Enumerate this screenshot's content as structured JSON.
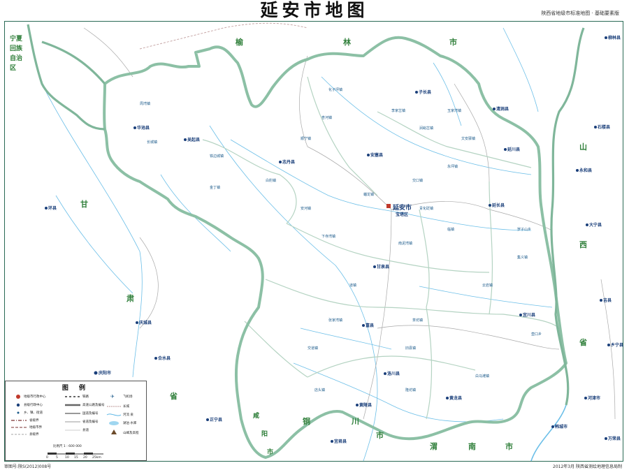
{
  "title": "延安市地图",
  "subtitle": "陕西省地级市标准地图 · 基础要素版",
  "footer": {
    "left": "审图号:陕S(2012)008号",
    "right": "2012年3月   陕西省测绘地理信息局制"
  },
  "regions": {
    "ningxia": "宁夏回族自治区",
    "yulin": [
      "榆",
      "林",
      "市"
    ],
    "gansu": [
      "甘",
      "肃",
      "省"
    ],
    "shanxi": [
      "山",
      "西",
      "省"
    ],
    "xianyang": [
      "咸",
      "阳",
      "市"
    ],
    "tongchuan": [
      "铜",
      "川",
      "市"
    ],
    "weinan": [
      "渭",
      "南",
      "市"
    ]
  },
  "city_seat": {
    "name": "延安市",
    "sub": "宝塔区"
  },
  "counties": [
    {
      "name": "吴起县"
    },
    {
      "name": "志丹县"
    },
    {
      "name": "安塞县"
    },
    {
      "name": "子长县"
    },
    {
      "name": "延川县"
    },
    {
      "name": "延长县"
    },
    {
      "name": "甘泉县"
    },
    {
      "name": "宜川县"
    },
    {
      "name": "富县"
    },
    {
      "name": "洛川县"
    },
    {
      "name": "黄龙县"
    },
    {
      "name": "黄陵县"
    },
    {
      "name": "清涧县"
    },
    {
      "name": "华池县"
    },
    {
      "name": "庆城县"
    },
    {
      "name": "合水县"
    },
    {
      "name": "庆阳市"
    },
    {
      "name": "环县"
    },
    {
      "name": "正宁县"
    },
    {
      "name": "宜君县"
    },
    {
      "name": "韩城市"
    },
    {
      "name": "河津市"
    },
    {
      "name": "乡宁县"
    },
    {
      "name": "吉县"
    },
    {
      "name": "大宁县"
    },
    {
      "name": "永和县"
    },
    {
      "name": "石楼县"
    },
    {
      "name": "柳林县"
    },
    {
      "name": "万荣县"
    }
  ],
  "towns": [
    "周湾镇",
    "长城镇",
    "铁边城镇",
    "白豹镇",
    "金丁镇",
    "顺宁镇",
    "杏河镇",
    "化子坪镇",
    "李家岔镇",
    "玉家湾镇",
    "涧峪岔镇",
    "文安驿镇",
    "永坪镇",
    "交口镇",
    "蟠龙镇",
    "青化砭镇",
    "临镇",
    "南泥湾镇",
    "下寺湾镇",
    "道镇",
    "张家湾镇",
    "茶坊镇",
    "交道镇",
    "旧县镇",
    "店头镇",
    "隆坊镇",
    "白马滩镇",
    "壶口乡",
    "云岩镇",
    "集义镇",
    "罗子山乡",
    "安河镇"
  ],
  "legend": {
    "title": "图  例",
    "items": [
      {
        "label": "地级市行政中心"
      },
      {
        "label": "县级行政中心"
      },
      {
        "label": "乡、镇、街道"
      },
      {
        "label": "省级界"
      },
      {
        "label": "地级市界"
      },
      {
        "label": "县级界"
      },
      {
        "label": "铁路"
      },
      {
        "label": "高速公路及编号"
      },
      {
        "label": "国道及编号"
      },
      {
        "label": "省道及编号"
      },
      {
        "label": "县道"
      },
      {
        "label": "飞机场"
      },
      {
        "label": "长城"
      },
      {
        "label": "河流  泉"
      },
      {
        "label": "湖泊  水库"
      },
      {
        "label": "山峰及高程"
      }
    ],
    "scale": "比例尺  1 : 600 000",
    "scale_ticks": [
      "0",
      "5",
      "10",
      "15",
      "20",
      "25km"
    ]
  },
  "colors": {
    "province_border": "#7fb69a",
    "city_border": "#9fc7b2",
    "county_line": "#a8c9b6",
    "river": "#5bb6e6",
    "road": "#9a9a9a",
    "text_region": "#2f7f3a",
    "text_place": "#1b5a8a"
  }
}
